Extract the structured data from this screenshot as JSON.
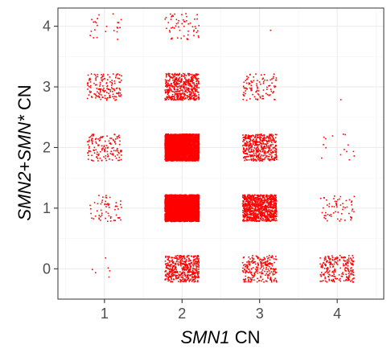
{
  "chart_data": {
    "type": "scatter",
    "subtype": "jitter",
    "xlabel_italic": "SMN1",
    "xlabel_plain": " CN",
    "ylabel_italic_1": "SMN2",
    "ylabel_plain_1": "+",
    "ylabel_italic_2": "SMN*",
    "ylabel_plain_2": " CN",
    "x_ticks": [
      "1",
      "2",
      "3",
      "4"
    ],
    "y_ticks": [
      "0",
      "1",
      "2",
      "3",
      "4"
    ],
    "xlim": [
      0.4,
      4.6
    ],
    "ylim": [
      -0.5,
      4.3
    ],
    "grid": true,
    "point_color": "#ff0000",
    "jitter_width": 0.22,
    "jitter_height": 0.22,
    "cells": [
      {
        "x": 1,
        "y": 0,
        "n": 6
      },
      {
        "x": 1,
        "y": 1,
        "n": 60
      },
      {
        "x": 1,
        "y": 2,
        "n": 140
      },
      {
        "x": 1,
        "y": 3,
        "n": 150
      },
      {
        "x": 1,
        "y": 4,
        "n": 25
      },
      {
        "x": 2,
        "y": 0,
        "n": 450
      },
      {
        "x": 2,
        "y": 1,
        "n": 4000
      },
      {
        "x": 2,
        "y": 2,
        "n": 3500
      },
      {
        "x": 2,
        "y": 3,
        "n": 500
      },
      {
        "x": 2,
        "y": 4,
        "n": 60
      },
      {
        "x": 3,
        "y": 0,
        "n": 250
      },
      {
        "x": 3,
        "y": 1,
        "n": 900
      },
      {
        "x": 3,
        "y": 2,
        "n": 450
      },
      {
        "x": 3,
        "y": 3,
        "n": 100
      },
      {
        "x": 3,
        "y": 4,
        "n": 1
      },
      {
        "x": 4,
        "y": 0,
        "n": 220
      },
      {
        "x": 4,
        "y": 1,
        "n": 60
      },
      {
        "x": 4,
        "y": 2,
        "n": 15
      },
      {
        "x": 4,
        "y": 3,
        "n": 1
      }
    ]
  }
}
